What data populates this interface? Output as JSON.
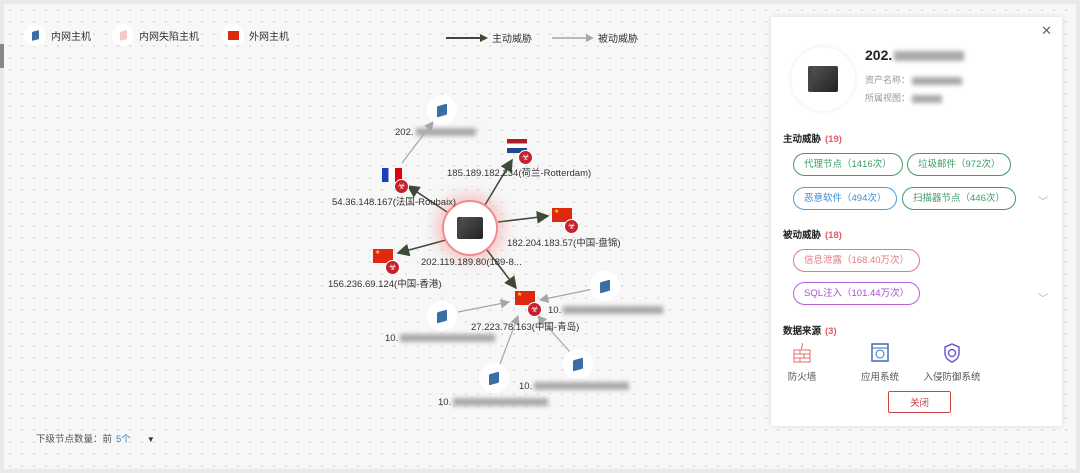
{
  "legend": {
    "internal_host": "内网主机",
    "compromised_host": "内网失陷主机",
    "external_host": "外网主机",
    "active_threat": "主动威胁",
    "passive_threat": "被动威胁"
  },
  "colors": {
    "active_arrow": "#3d4a35",
    "passive_arrow": "#a6a6a6",
    "center_glow": "#f28c8c",
    "accent": "#2f7fd6",
    "danger": "#c7202c"
  },
  "graph": {
    "center": {
      "label": "202.119.189.80(189-8..."
    },
    "nodes": [
      {
        "id": "top-internal",
        "type": "internal",
        "label_prefix": "202."
      },
      {
        "id": "france",
        "type": "external",
        "flag": "fr",
        "label": "54.36.148.167(法国-Roubaix)"
      },
      {
        "id": "netherlands",
        "type": "external",
        "flag": "nl",
        "label": "185.189.182.234(荷兰-Rotterdam)"
      },
      {
        "id": "china-right",
        "type": "external",
        "flag": "cn",
        "label": "182.204.183.57(中国-盘锦)"
      },
      {
        "id": "china-hk",
        "type": "external",
        "flag": "cn",
        "label": "156.236.69.124(中国-香港)"
      },
      {
        "id": "qingdao",
        "type": "external",
        "flag": "cn",
        "label": "27.223.78.163(中国-青岛)"
      },
      {
        "id": "int-right",
        "type": "internal",
        "label_prefix": "10."
      },
      {
        "id": "int-left",
        "type": "internal",
        "label_prefix": "10."
      },
      {
        "id": "int-bottom-right",
        "type": "internal",
        "label_prefix": "10."
      },
      {
        "id": "int-bottom",
        "type": "internal",
        "label_prefix": "10."
      }
    ]
  },
  "footer": {
    "label": "下级节点数量：前",
    "value": "5个"
  },
  "panel": {
    "ip_prefix": "202.",
    "asset_name_label": "资产名称：",
    "view_label": "所属视图：",
    "active": {
      "title": "主动威胁",
      "count": "(19)",
      "tags": [
        "代理节点（1416次）",
        "垃圾邮件（972次）",
        "恶意软件（494次）",
        "扫描器节点（446次）"
      ]
    },
    "passive": {
      "title": "被动威胁",
      "count": "(18)",
      "tags": [
        "信息泄露（168.40万次）",
        "SQL注入（101.44万次）"
      ]
    },
    "sources": {
      "title": "数据来源",
      "count": "(3)",
      "items": [
        "防火墙",
        "应用系统",
        "入侵防御系统"
      ]
    },
    "close_label": "关闭"
  }
}
